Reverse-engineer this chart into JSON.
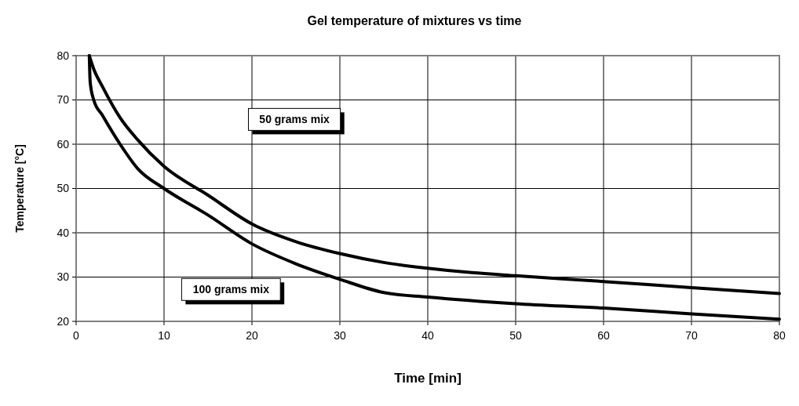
{
  "chart_data": {
    "type": "line",
    "title": "Gel temperature of mixtures vs time",
    "xlabel": "Time [min]",
    "ylabel": "Temperature [°C]",
    "xlim": [
      0,
      80
    ],
    "xticks": [
      0,
      10,
      20,
      30,
      40,
      50,
      60,
      70,
      80
    ],
    "ylim": [
      20,
      80
    ],
    "yticks": [
      20,
      30,
      40,
      50,
      60,
      70,
      80
    ],
    "grid": true,
    "marker": "none",
    "line_style": "solid",
    "series": [
      {
        "name": "50 grams mix",
        "color": "#000000",
        "x": [
          1.5,
          2,
          3,
          5,
          7,
          10,
          15,
          20,
          25,
          30,
          35,
          40,
          45,
          50,
          60,
          70,
          80
        ],
        "values": [
          80,
          77,
          73,
          66,
          61,
          55,
          48.5,
          42,
          38,
          35.3,
          33.3,
          32,
          31,
          30.3,
          29,
          27.6,
          26.3
        ]
      },
      {
        "name": "100 grams mix",
        "color": "#000000",
        "x": [
          1.5,
          1.6,
          2,
          3,
          5,
          7,
          10,
          15,
          20,
          25,
          30,
          35,
          40,
          50,
          60,
          70,
          80
        ],
        "values": [
          80,
          74,
          70,
          66.5,
          60,
          54.5,
          50,
          44,
          37.5,
          33,
          29.5,
          26.5,
          25.5,
          24,
          23,
          21.7,
          20.5
        ]
      }
    ]
  }
}
